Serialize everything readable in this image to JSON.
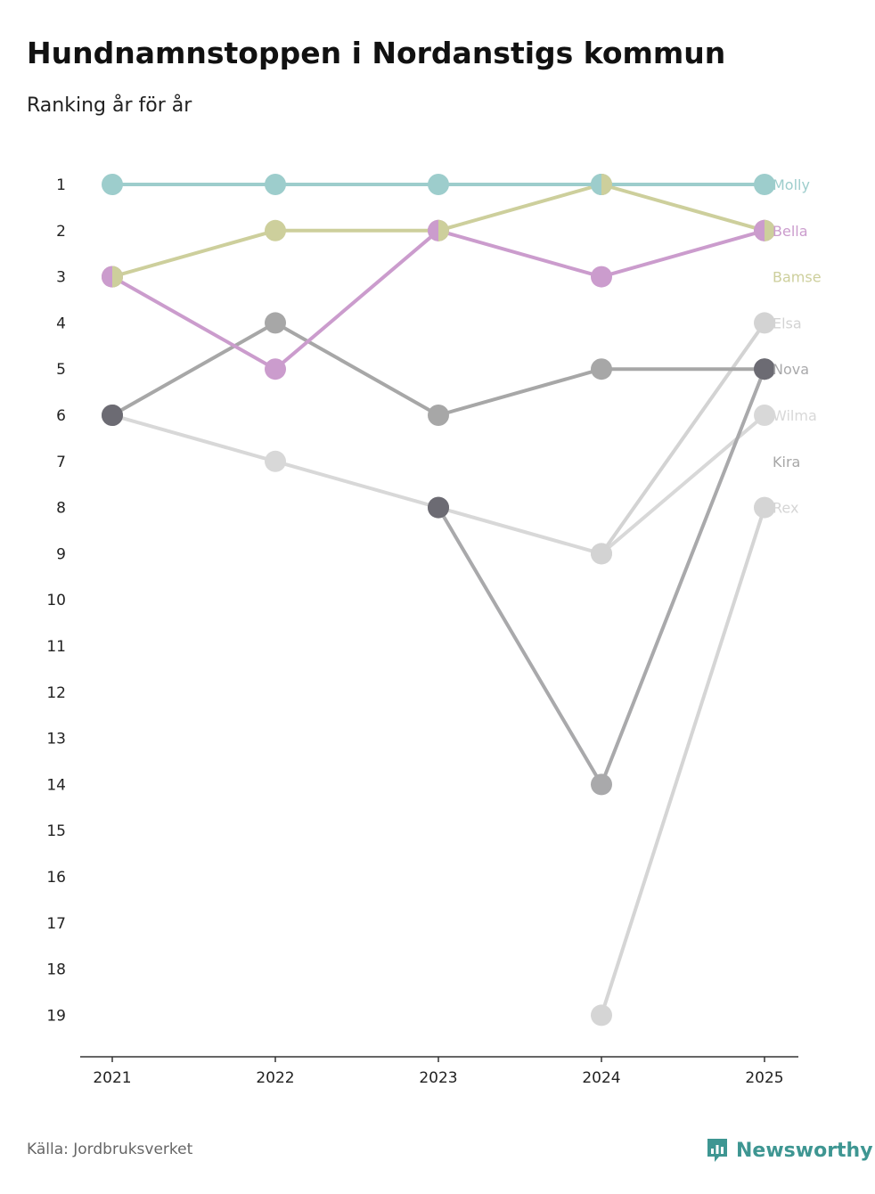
{
  "title": "Hundnamnstoppen i Nordanstigs kommun",
  "subtitle": "Ranking år för år",
  "source": "Källa: Jordbruksverket",
  "brand": {
    "name": "Newsworthy",
    "icon": "newsworthy-logo-icon",
    "color": "#3e9692"
  },
  "chart_data": {
    "type": "line",
    "title": "Hundnamnstoppen i Nordanstigs kommun",
    "subtitle": "Ranking år för år",
    "x": [
      "2021",
      "2022",
      "2023",
      "2024",
      "2025"
    ],
    "y_ticks": [
      "1",
      "2",
      "3",
      "4",
      "5",
      "6",
      "7",
      "8",
      "9",
      "10",
      "11",
      "12",
      "13",
      "14",
      "15",
      "16",
      "17",
      "18",
      "19"
    ],
    "ylim": [
      1,
      19
    ],
    "y_inverted": true,
    "grid": false,
    "legend": "end-of-line labels",
    "series": [
      {
        "name": "Rex",
        "color": "#d5d5d5",
        "values": [
          null,
          null,
          null,
          19,
          8
        ]
      },
      {
        "name": "Wilma",
        "color": "#d8d8d8",
        "values": [
          6,
          7,
          8,
          9,
          6
        ]
      },
      {
        "name": "Elsa",
        "color": "#d3d3d3",
        "values": [
          null,
          null,
          null,
          9,
          4
        ]
      },
      {
        "name": "Kira",
        "color": "#a7a7a7",
        "values": [
          6,
          4,
          6,
          5,
          5
        ]
      },
      {
        "name": "Nova",
        "color": "#a9a9ab",
        "values": [
          null,
          null,
          8,
          14,
          5
        ]
      },
      {
        "name": "Bamse",
        "color": "#cdcf9c",
        "values": [
          3,
          2,
          2,
          1,
          2
        ]
      },
      {
        "name": "Bella",
        "color": "#cb9ccd",
        "values": [
          3,
          5,
          2,
          3,
          2
        ]
      },
      {
        "name": "Molly",
        "color": "#9dcdcc",
        "values": [
          1,
          1,
          1,
          1,
          1
        ]
      }
    ],
    "end_label_ranks": {
      "Molly": 1,
      "Bella": 2,
      "Bamse": 3,
      "Elsa": 4,
      "Nova": 5,
      "Wilma": 6,
      "Kira": 7,
      "Rex": 8
    },
    "dark_point_color": "#6c6b73",
    "dark_points": [
      {
        "x": "2021",
        "rank": 6
      },
      {
        "x": "2023",
        "rank": 8
      },
      {
        "x": "2025",
        "rank": 5
      }
    ],
    "split_points": [
      {
        "x": "2021",
        "rank": 3,
        "left": "Bella",
        "right": "Bamse"
      },
      {
        "x": "2023",
        "rank": 2,
        "left": "Bella",
        "right": "Bamse"
      },
      {
        "x": "2024",
        "rank": 1,
        "left": "Molly",
        "right": "Bamse"
      },
      {
        "x": "2025",
        "rank": 2,
        "left": "Bella",
        "right": "Bamse"
      }
    ]
  }
}
